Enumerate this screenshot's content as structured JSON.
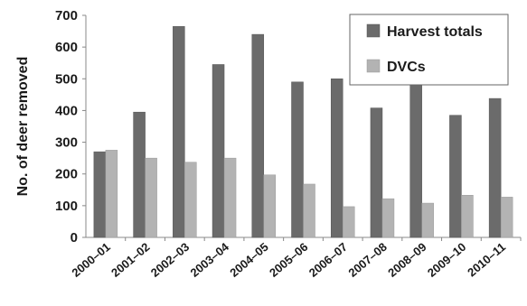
{
  "chart_data": {
    "type": "bar",
    "title": "",
    "xlabel": "",
    "ylabel": "No. of deer removed",
    "ylim": [
      0,
      700
    ],
    "yticks": [
      0,
      100,
      200,
      300,
      400,
      500,
      600,
      700
    ],
    "grid": false,
    "legend_position": "top-right",
    "categories": [
      "2000–01",
      "2001–02",
      "2002–03",
      "2003–04",
      "2004–05",
      "2005–06",
      "2006–07",
      "2007–08",
      "2008–09",
      "2009–10",
      "2010–11"
    ],
    "series": [
      {
        "name": "Harvest totals",
        "color": "#6b6b6b",
        "values": [
          270,
          395,
          665,
          545,
          640,
          490,
          500,
          408,
          482,
          385,
          438
        ]
      },
      {
        "name": "DVCs",
        "color": "#b3b3b3",
        "values": [
          275,
          250,
          237,
          250,
          197,
          168,
          97,
          122,
          108,
          133,
          127
        ]
      }
    ]
  }
}
